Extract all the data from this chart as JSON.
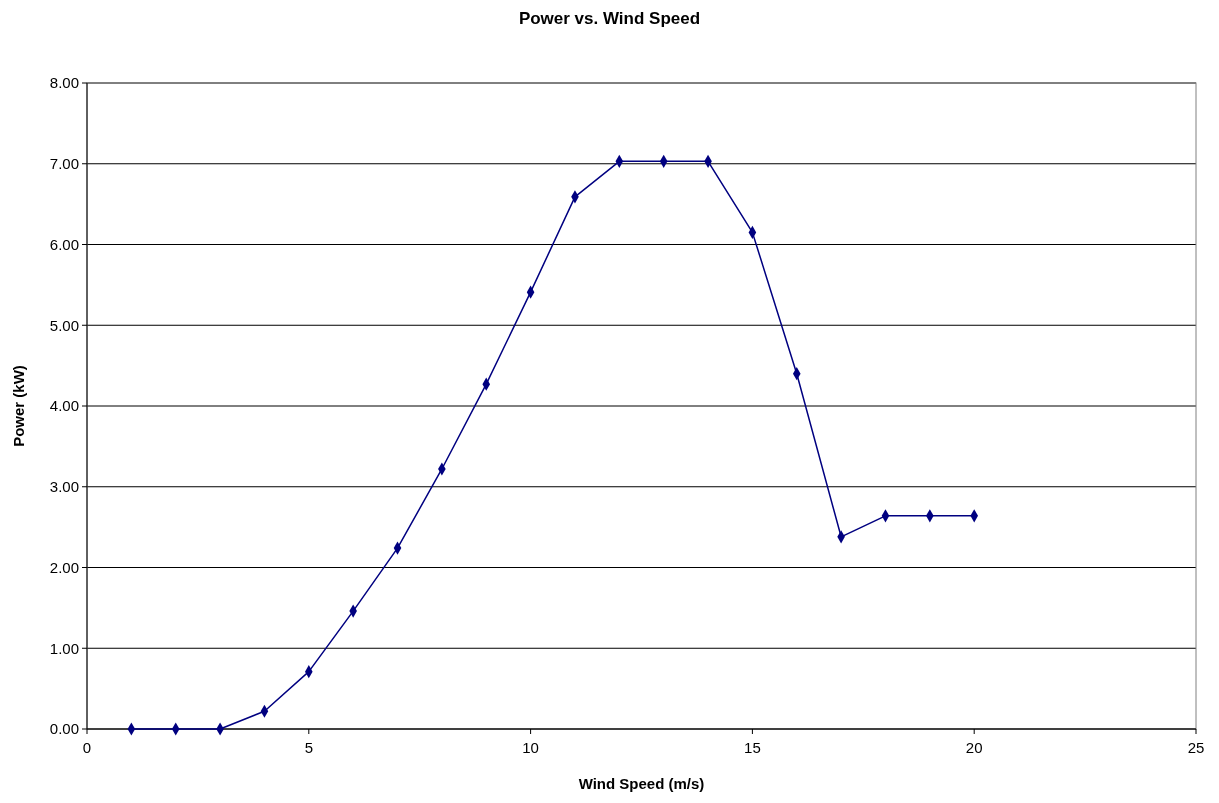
{
  "chart_data": {
    "type": "line",
    "title": "Power vs. Wind Speed",
    "xlabel": "Wind Speed (m/s)",
    "ylabel": "Power (kW)",
    "x": [
      1,
      2,
      3,
      4,
      5,
      6,
      7,
      8,
      9,
      10,
      11,
      12,
      13,
      14,
      15,
      16,
      17,
      18,
      19,
      20
    ],
    "series": [
      {
        "color": "#000080",
        "values": [
          0,
          0,
          0,
          0.22,
          0.71,
          1.46,
          2.24,
          3.22,
          4.27,
          5.41,
          6.59,
          7.03,
          7.03,
          7.03,
          6.15,
          4.4,
          2.38,
          2.64,
          2.64,
          2.64
        ]
      }
    ],
    "xlim": [
      0,
      25
    ],
    "xticks": [
      0,
      5,
      10,
      15,
      20,
      25
    ],
    "ylim": [
      0,
      8
    ],
    "yticks": [
      {
        "value": 0,
        "label": "0.00"
      },
      {
        "value": 1,
        "label": "1.00"
      },
      {
        "value": 2,
        "label": "2.00"
      },
      {
        "value": 3,
        "label": "3.00"
      },
      {
        "value": 4,
        "label": "4.00"
      },
      {
        "value": 5,
        "label": "5.00"
      },
      {
        "value": 6,
        "label": "6.00"
      },
      {
        "value": 7,
        "label": "7.00"
      },
      {
        "value": 8,
        "label": "8.00"
      }
    ],
    "grid": "y",
    "marker": "diamond",
    "line_style": "solid"
  }
}
